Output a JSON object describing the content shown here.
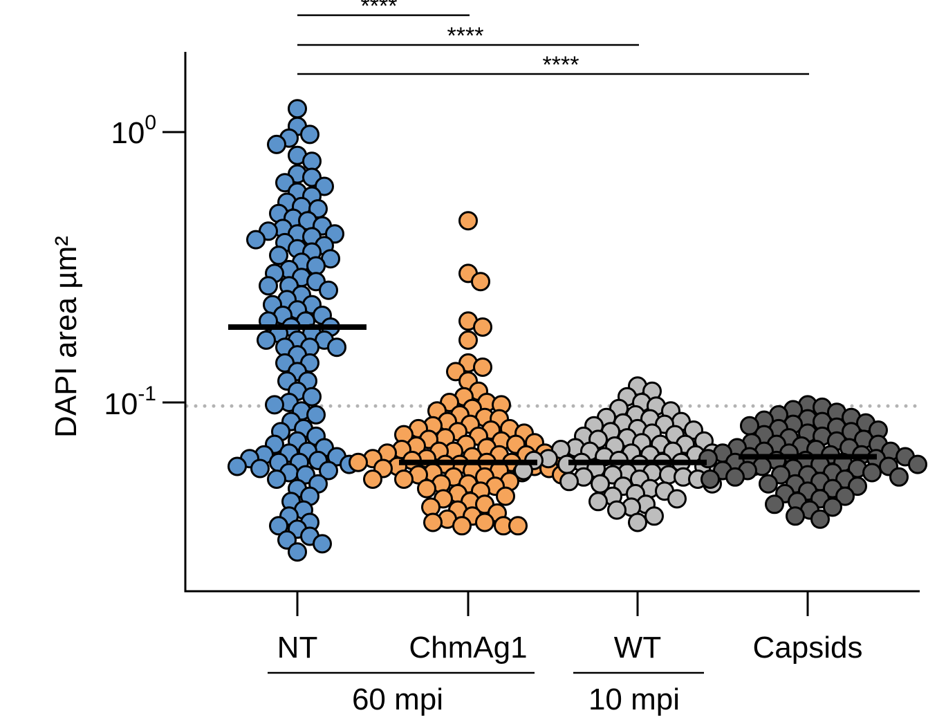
{
  "chart_data": {
    "type": "scatter",
    "subtype": "beeswarm",
    "ylabel": "DAPI area µm²",
    "yscale": "log",
    "ylim": [
      0.0215,
      2.0
    ],
    "y_ticks": [
      {
        "value": 1.0,
        "base": "10",
        "exp": "0"
      },
      {
        "value": 0.1,
        "base": "10",
        "exp": "-1"
      }
    ],
    "threshold": {
      "value": 0.097,
      "color": "#b3b3b3",
      "style": "dotted"
    },
    "categories": [
      "NT",
      "ChmAg1",
      "WT",
      "Capsids"
    ],
    "groups": [
      {
        "label": "60 mpi",
        "from": 0,
        "to": 1
      },
      {
        "label": "10 mpi",
        "from": 2,
        "to": 2
      }
    ],
    "significance": [
      {
        "from": 0,
        "to": 1,
        "label": "****"
      },
      {
        "from": 0,
        "to": 2,
        "label": "****"
      },
      {
        "from": 0,
        "to": 3,
        "label": "****"
      }
    ],
    "series": [
      {
        "name": "NT",
        "color": "#5b93cc",
        "median": 0.19,
        "values": [
          1.22,
          1.05,
          0.98,
          0.95,
          0.9,
          0.82,
          0.78,
          0.7,
          0.68,
          0.65,
          0.63,
          0.6,
          0.58,
          0.55,
          0.53,
          0.52,
          0.5,
          0.48,
          0.47,
          0.45,
          0.44,
          0.43,
          0.42,
          0.42,
          0.41,
          0.4,
          0.39,
          0.38,
          0.37,
          0.36,
          0.35,
          0.34,
          0.33,
          0.32,
          0.31,
          0.3,
          0.29,
          0.28,
          0.27,
          0.27,
          0.26,
          0.25,
          0.24,
          0.23,
          0.23,
          0.22,
          0.21,
          0.21,
          0.2,
          0.2,
          0.19,
          0.19,
          0.18,
          0.18,
          0.17,
          0.17,
          0.17,
          0.16,
          0.16,
          0.16,
          0.15,
          0.14,
          0.14,
          0.13,
          0.12,
          0.12,
          0.11,
          0.105,
          0.1,
          0.098,
          0.093,
          0.09,
          0.085,
          0.08,
          0.078,
          0.075,
          0.072,
          0.07,
          0.068,
          0.066,
          0.065,
          0.064,
          0.063,
          0.062,
          0.061,
          0.06,
          0.06,
          0.059,
          0.058,
          0.057,
          0.056,
          0.055,
          0.054,
          0.052,
          0.05,
          0.048,
          0.045,
          0.043,
          0.04,
          0.038,
          0.036,
          0.035,
          0.034,
          0.032,
          0.031,
          0.03,
          0.028
        ]
      },
      {
        "name": "ChmAg1",
        "color": "#f6a45a",
        "median": 0.06,
        "values": [
          0.47,
          0.3,
          0.28,
          0.2,
          0.19,
          0.17,
          0.14,
          0.135,
          0.13,
          0.12,
          0.11,
          0.105,
          0.1,
          0.1,
          0.098,
          0.095,
          0.093,
          0.09,
          0.088,
          0.087,
          0.085,
          0.083,
          0.082,
          0.08,
          0.08,
          0.079,
          0.078,
          0.077,
          0.076,
          0.075,
          0.074,
          0.073,
          0.072,
          0.071,
          0.07,
          0.07,
          0.069,
          0.068,
          0.067,
          0.066,
          0.066,
          0.065,
          0.065,
          0.064,
          0.064,
          0.063,
          0.063,
          0.062,
          0.062,
          0.061,
          0.061,
          0.06,
          0.06,
          0.06,
          0.059,
          0.059,
          0.058,
          0.058,
          0.057,
          0.057,
          0.057,
          0.056,
          0.056,
          0.055,
          0.055,
          0.054,
          0.054,
          0.053,
          0.053,
          0.052,
          0.052,
          0.051,
          0.05,
          0.05,
          0.049,
          0.048,
          0.047,
          0.046,
          0.045,
          0.044,
          0.043,
          0.042,
          0.041,
          0.04,
          0.039,
          0.038,
          0.037,
          0.036,
          0.036,
          0.035,
          0.035,
          0.035
        ]
      },
      {
        "name": "WT",
        "color": "#bdbdbd",
        "median": 0.06,
        "values": [
          0.115,
          0.11,
          0.105,
          0.1,
          0.097,
          0.095,
          0.093,
          0.09,
          0.088,
          0.087,
          0.085,
          0.084,
          0.083,
          0.082,
          0.08,
          0.079,
          0.078,
          0.077,
          0.076,
          0.075,
          0.074,
          0.073,
          0.072,
          0.071,
          0.07,
          0.07,
          0.069,
          0.068,
          0.067,
          0.066,
          0.066,
          0.065,
          0.065,
          0.064,
          0.064,
          0.063,
          0.063,
          0.062,
          0.062,
          0.061,
          0.061,
          0.06,
          0.06,
          0.06,
          0.059,
          0.059,
          0.058,
          0.058,
          0.057,
          0.057,
          0.056,
          0.056,
          0.055,
          0.055,
          0.054,
          0.054,
          0.053,
          0.053,
          0.052,
          0.052,
          0.051,
          0.05,
          0.05,
          0.049,
          0.048,
          0.047,
          0.046,
          0.045,
          0.044,
          0.043,
          0.042,
          0.041,
          0.04,
          0.038,
          0.036
        ]
      },
      {
        "name": "Capsids",
        "color": "#5c5c5c",
        "median": 0.063,
        "values": [
          0.098,
          0.096,
          0.094,
          0.092,
          0.09,
          0.088,
          0.087,
          0.086,
          0.085,
          0.084,
          0.083,
          0.082,
          0.081,
          0.08,
          0.079,
          0.078,
          0.077,
          0.076,
          0.075,
          0.074,
          0.073,
          0.072,
          0.071,
          0.07,
          0.07,
          0.069,
          0.068,
          0.068,
          0.067,
          0.066,
          0.066,
          0.065,
          0.065,
          0.064,
          0.064,
          0.063,
          0.063,
          0.062,
          0.062,
          0.061,
          0.061,
          0.06,
          0.06,
          0.059,
          0.059,
          0.058,
          0.058,
          0.057,
          0.057,
          0.056,
          0.056,
          0.055,
          0.055,
          0.054,
          0.054,
          0.053,
          0.053,
          0.052,
          0.052,
          0.051,
          0.05,
          0.05,
          0.049,
          0.048,
          0.047,
          0.046,
          0.045,
          0.044,
          0.043,
          0.042,
          0.041,
          0.04,
          0.038,
          0.037
        ]
      }
    ]
  }
}
